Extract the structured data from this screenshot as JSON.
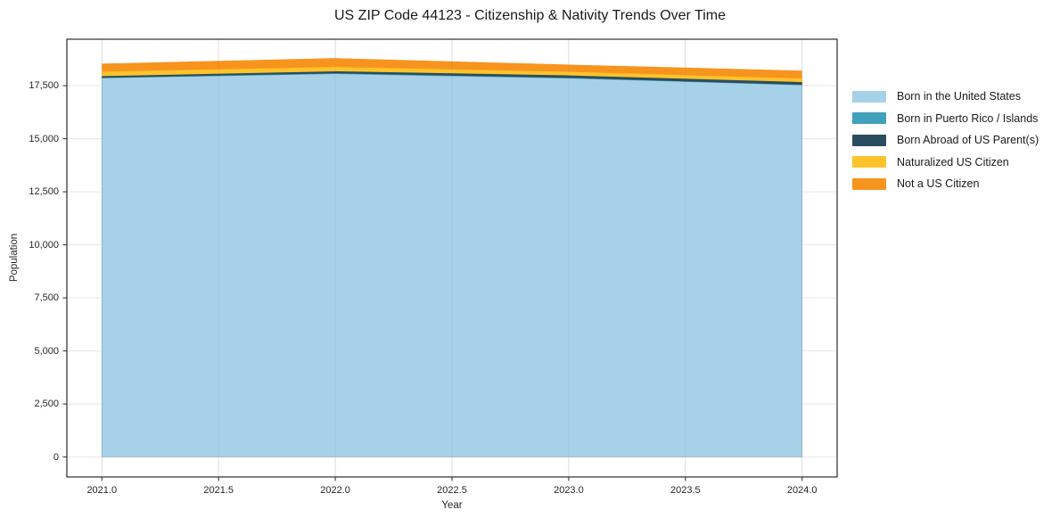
{
  "chart_data": {
    "type": "area",
    "title": "US ZIP Code 44123 - Citizenship & Nativity Trends Over Time",
    "xlabel": "Year",
    "ylabel": "Population",
    "x": [
      2021,
      2022,
      2023,
      2024
    ],
    "series": [
      {
        "name": "Born in the United States",
        "color": "#A6D1E8",
        "values": [
          17850,
          18050,
          17840,
          17520
        ]
      },
      {
        "name": "Born in Puerto Rico / Islands",
        "color": "#41A0BA",
        "values": [
          20,
          30,
          25,
          20
        ]
      },
      {
        "name": "Born Abroad of US Parent(s)",
        "color": "#2B4C5F",
        "values": [
          80,
          100,
          120,
          130
        ]
      },
      {
        "name": "Naturalized US Citizen",
        "color": "#FDC32B",
        "values": [
          210,
          200,
          170,
          170
        ]
      },
      {
        "name": "Not a US Citizen",
        "color": "#F7941E",
        "values": [
          380,
          420,
          340,
          370
        ]
      }
    ],
    "stacked": true,
    "x_ticks": {
      "values": [
        2021.0,
        2021.5,
        2022.0,
        2022.5,
        2023.0,
        2023.5,
        2024.0
      ],
      "labels": [
        "2021.0",
        "2021.5",
        "2022.0",
        "2022.5",
        "2023.0",
        "2023.5",
        "2024.0"
      ]
    },
    "y_ticks": {
      "values": [
        0,
        2500,
        5000,
        7500,
        10000,
        12500,
        15000,
        17500
      ],
      "labels": [
        "0",
        "2,500",
        "5,000",
        "7,500",
        "10,000",
        "12,500",
        "15,000",
        "17,500"
      ]
    },
    "xlim": [
      2020.85,
      2024.15
    ],
    "ylim": [
      -940,
      19690
    ],
    "grid": true,
    "legend_position": "right-outside",
    "frame_color": "#2b2b2b",
    "grid_color": "#e7e7e7"
  }
}
